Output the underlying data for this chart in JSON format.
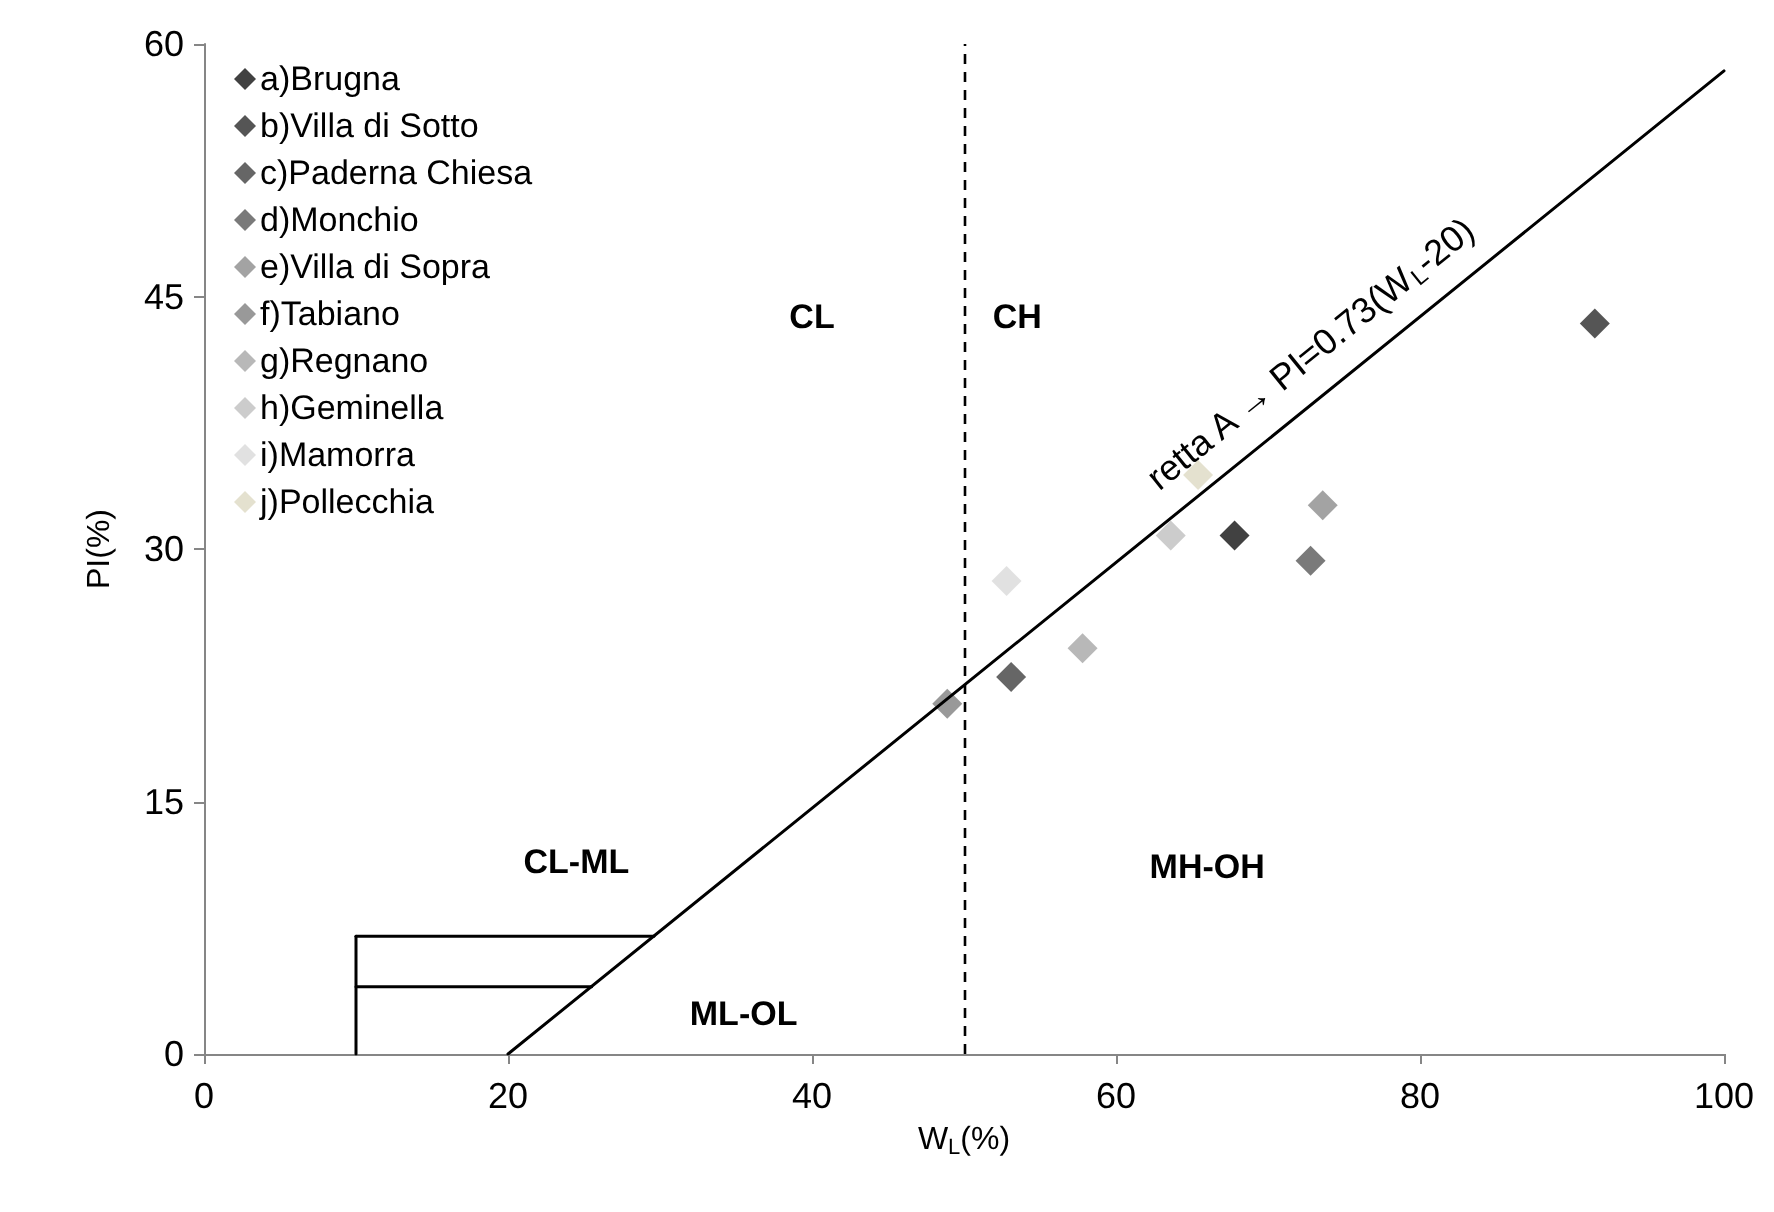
{
  "chart_data": {
    "type": "scatter",
    "xlabel": "W$_{L}$(%)",
    "ylabel": "PI(%)",
    "xlim": [
      0,
      100
    ],
    "xticks": [
      0,
      20,
      40,
      60,
      80,
      100
    ],
    "ylim": [
      0,
      60
    ],
    "yticks": [
      0,
      15,
      30,
      45,
      60
    ],
    "grid": false,
    "legend": "top left",
    "marker": "diamond",
    "series": [
      {
        "name": "a)Brugna",
        "color": "#111111",
        "x": [
          67.8
        ],
        "values": [
          30.8
        ]
      },
      {
        "name": "b)Villa di Sotto",
        "color": "#2b2b2b",
        "x": [
          91.5
        ],
        "values": [
          43.4
        ]
      },
      {
        "name": "c)Paderna Chiesa",
        "color": "#404040",
        "x": [
          53.1
        ],
        "values": [
          22.4
        ]
      },
      {
        "name": "d)Monchio",
        "color": "#595959",
        "x": [
          72.8
        ],
        "values": [
          29.3
        ]
      },
      {
        "name": "e)Villa di Sopra",
        "color": "#8c8c8c",
        "x": [
          73.6
        ],
        "values": [
          32.6
        ]
      },
      {
        "name": "f)Tabiano",
        "color": "#7f7f7f",
        "x": [
          48.9
        ],
        "values": [
          20.8
        ]
      },
      {
        "name": "g)Regnano",
        "color": "#a6a6a6",
        "x": [
          57.8
        ],
        "values": [
          24.1
        ]
      },
      {
        "name": "h)Geminella",
        "color": "#bfbfbf",
        "x": [
          63.6
        ],
        "values": [
          30.8
        ]
      },
      {
        "name": "i)Mamorra",
        "color": "#d9d9d9",
        "x": [
          52.8
        ],
        "values": [
          28.1
        ]
      },
      {
        "name": "j)Pollecchia",
        "color": "#ddd9c3",
        "x": [
          65.4
        ],
        "values": [
          34.4
        ]
      },
      {
        "name": "retta A → PI=0.73(W$_{L}$-20)",
        "type": "line",
        "marker": "none",
        "color": "#000000",
        "x": [
          20,
          100
        ],
        "values": [
          0,
          58.4
        ]
      },
      {
        "type": "line",
        "marker": "none",
        "color": "#000000",
        "x": [
          10,
          29.6
        ],
        "values": [
          7,
          7
        ]
      },
      {
        "type": "line",
        "marker": "none",
        "color": "#000000",
        "x": [
          10,
          25.5
        ],
        "values": [
          4,
          4
        ]
      },
      {
        "type": "line",
        "marker": "none",
        "color": "#000000",
        "x": [
          10,
          10
        ],
        "values": [
          0,
          7
        ]
      }
    ],
    "ref_lines": [
      {
        "axis": "x",
        "value": 50,
        "color": "#000000",
        "line_style": "dashed"
      }
    ],
    "annotations": [
      "CL",
      "CH",
      "CL-ML",
      "ML-OL",
      "MH-OH"
    ]
  }
}
